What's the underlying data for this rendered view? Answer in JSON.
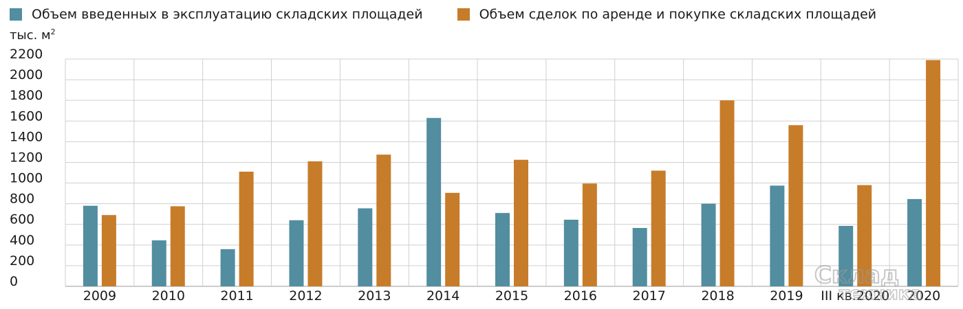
{
  "chart_data": {
    "type": "bar",
    "ylabel": "тыс. м",
    "ylabel_sup": "2",
    "ylim": [
      0,
      2200
    ],
    "yticks": [
      0,
      200,
      400,
      600,
      800,
      1000,
      1200,
      1400,
      1600,
      1800,
      2000,
      2200
    ],
    "grid": true,
    "legend_position": "top-left",
    "categories": [
      "2009",
      "2010",
      "2011",
      "2012",
      "2013",
      "2014",
      "2015",
      "2016",
      "2017",
      "2018",
      "2019",
      "III кв.2020",
      "2020"
    ],
    "series": [
      {
        "name": "Объем введенных в эксплуатацию складских площадей",
        "color": "#528da0",
        "values": [
          780,
          445,
          360,
          640,
          755,
          1630,
          710,
          645,
          565,
          800,
          975,
          585,
          845
        ]
      },
      {
        "name": "Объем сделок по аренде и покупке складских площадей",
        "color": "#c77c2a",
        "values": [
          690,
          775,
          1110,
          1210,
          1275,
          905,
          1225,
          995,
          1120,
          1800,
          1560,
          980,
          2190
        ]
      }
    ]
  },
  "watermark": {
    "line1": "Склад",
    "line2": "техника"
  }
}
